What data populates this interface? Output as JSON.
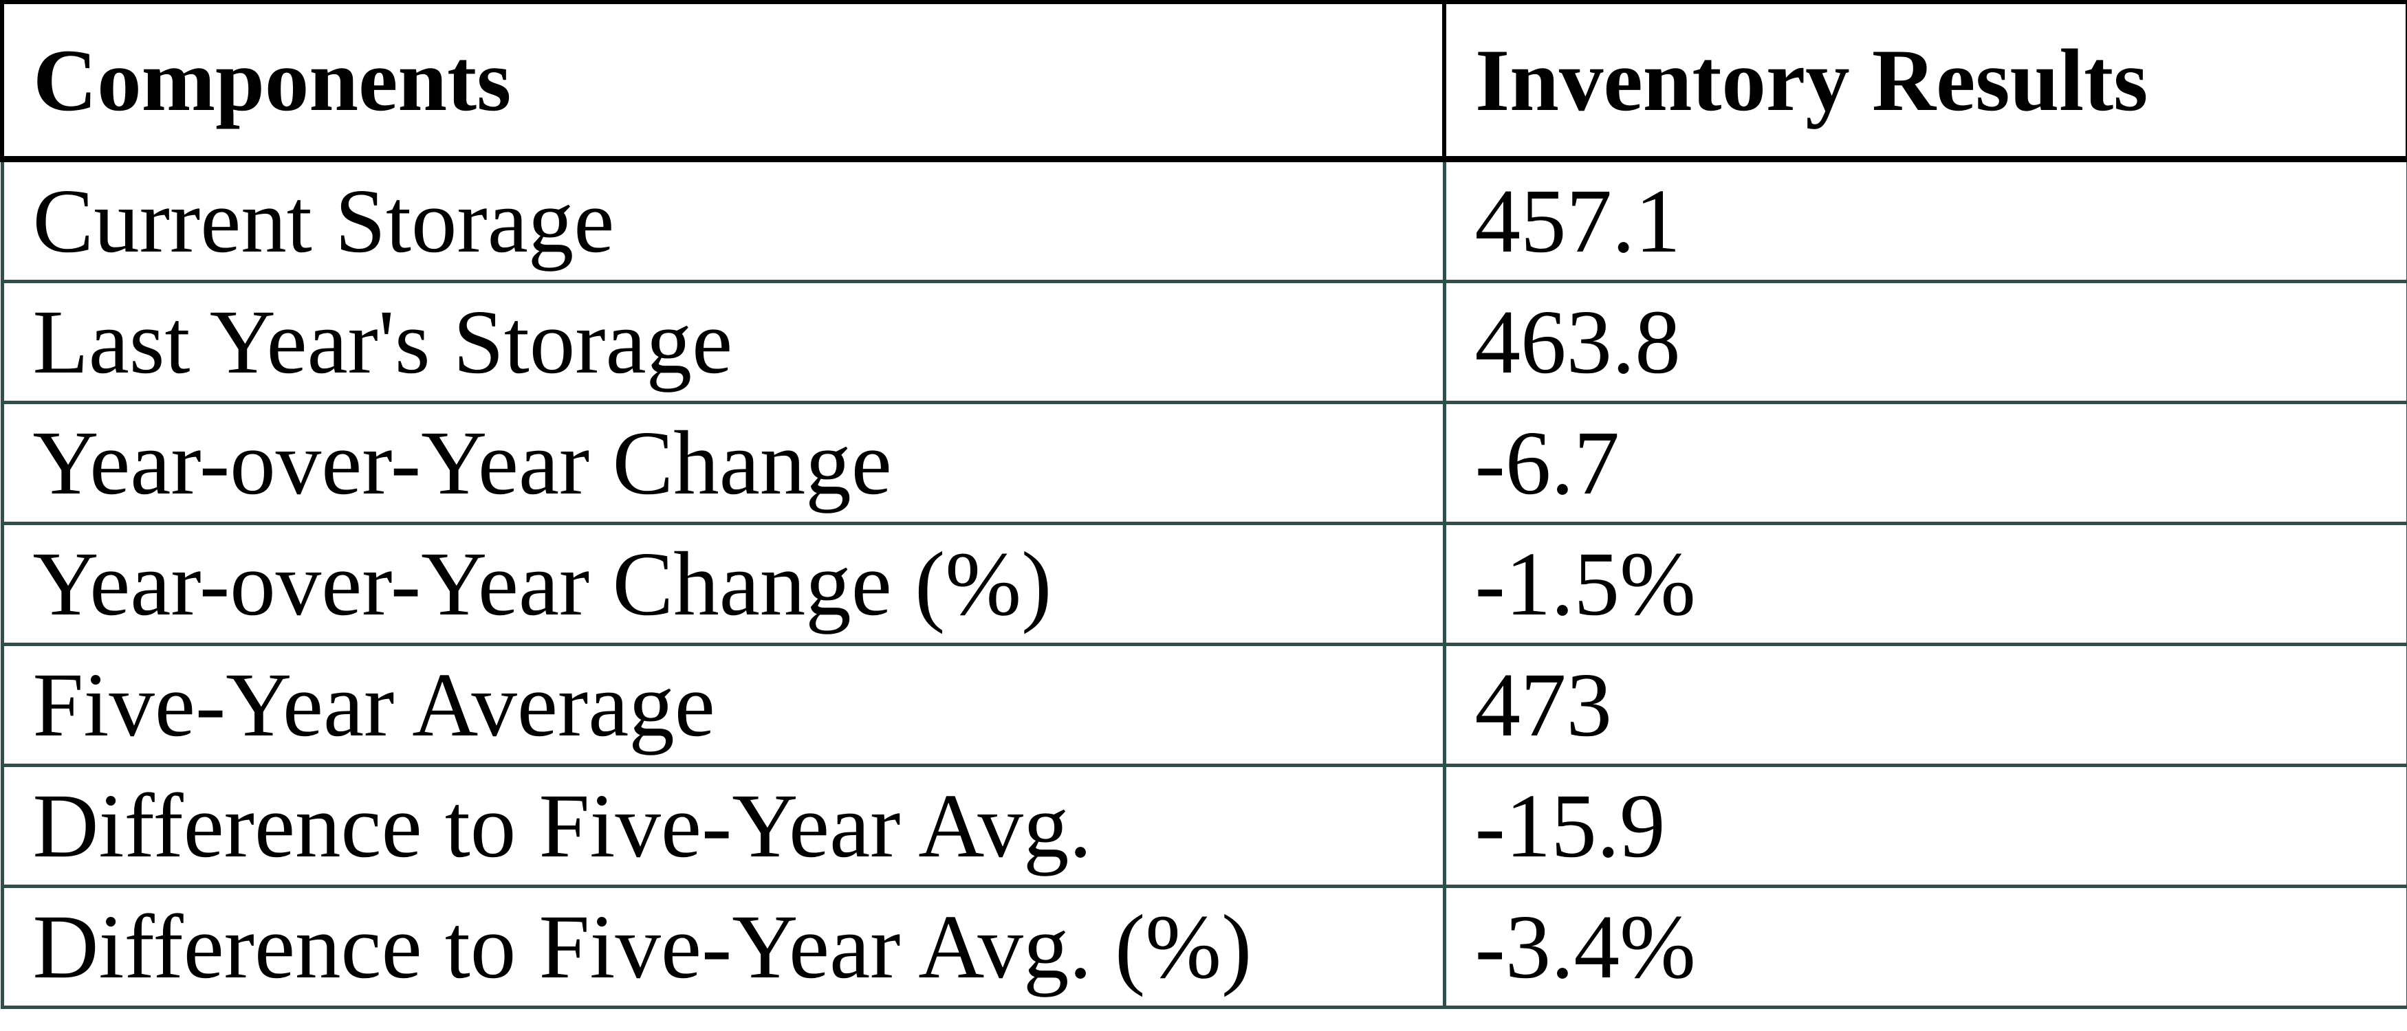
{
  "table": {
    "columns": [
      "Components",
      "Inventory Results"
    ],
    "rows": [
      {
        "component": "Current Storage",
        "result": "457.1"
      },
      {
        "component": "Last Year's Storage",
        "result": "463.8"
      },
      {
        "component": "Year-over-Year Change",
        "result": "-6.7"
      },
      {
        "component": "Year-over-Year Change (%)",
        "result": "-1.5%"
      },
      {
        "component": "Five-Year Average",
        "result": "473"
      },
      {
        "component": "Difference to Five-Year Avg.",
        "result": "-15.9"
      },
      {
        "component": "Difference to Five-Year Avg. (%)",
        "result": "-3.4%"
      }
    ]
  },
  "colors": {
    "text": "#000000",
    "header_border": "#000000",
    "body_border": "#2F4F4D",
    "background": "#FFFFFF"
  },
  "chart_data": {
    "type": "table",
    "columns": [
      "Components",
      "Inventory Results"
    ],
    "rows": [
      [
        "Current Storage",
        457.1
      ],
      [
        "Last Year's Storage",
        463.8
      ],
      [
        "Year-over-Year Change",
        -6.7
      ],
      [
        "Year-over-Year Change (%)",
        "-1.5%"
      ],
      [
        "Five-Year Average",
        473
      ],
      [
        "Difference to Five-Year Avg.",
        -15.9
      ],
      [
        "Difference to Five-Year Avg. (%)",
        "-3.4%"
      ]
    ]
  }
}
